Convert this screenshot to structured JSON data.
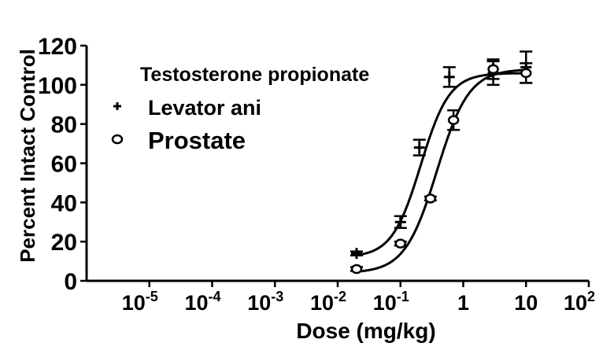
{
  "chart_data": {
    "type": "scatter",
    "title": "",
    "legend_title": "Testosterone propionate",
    "xlabel": "Dose (mg/kg)",
    "ylabel": "Percent Intact Control",
    "x_scale": "log",
    "xlim": [
      1e-06,
      100
    ],
    "ylim": [
      0,
      120
    ],
    "x_ticks": [
      {
        "value": 1e-05,
        "label": "10",
        "exp": "-5"
      },
      {
        "value": 0.0001,
        "label": "10",
        "exp": "-4"
      },
      {
        "value": 0.001,
        "label": "10",
        "exp": "-3"
      },
      {
        "value": 0.01,
        "label": "10",
        "exp": "-2"
      },
      {
        "value": 0.1,
        "label": "10",
        "exp": "-1"
      },
      {
        "value": 1,
        "label": "1",
        "exp": ""
      },
      {
        "value": 10,
        "label": "10",
        "exp": ""
      },
      {
        "value": 100,
        "label": "10",
        "exp": "2"
      }
    ],
    "y_ticks": [
      0,
      20,
      40,
      60,
      80,
      100,
      120
    ],
    "grid": false,
    "legend_position": "top-left",
    "series": [
      {
        "name": "Levator ani",
        "marker": "plus",
        "points": [
          {
            "x": 0.02,
            "y": 14,
            "err": 1
          },
          {
            "x": 0.1,
            "y": 30,
            "err": 3
          },
          {
            "x": 0.2,
            "y": 68,
            "err": 4
          },
          {
            "x": 0.6,
            "y": 104,
            "err": 5
          },
          {
            "x": 3,
            "y": 106,
            "err": 6
          },
          {
            "x": 10,
            "y": 109,
            "err": 8
          }
        ],
        "fit": {
          "bottom": 12,
          "top": 106,
          "ec50": 0.21,
          "hill": 1.9
        }
      },
      {
        "name": "Prostate",
        "marker": "circle",
        "points": [
          {
            "x": 0.02,
            "y": 6,
            "err": 1
          },
          {
            "x": 0.1,
            "y": 19,
            "err": 1
          },
          {
            "x": 0.3,
            "y": 42,
            "err": 1
          },
          {
            "x": 0.7,
            "y": 82,
            "err": 5
          },
          {
            "x": 3,
            "y": 108,
            "err": 5
          },
          {
            "x": 10,
            "y": 106,
            "err": 5
          }
        ],
        "fit": {
          "bottom": 4,
          "top": 108,
          "ec50": 0.38,
          "hill": 1.7
        }
      }
    ]
  }
}
